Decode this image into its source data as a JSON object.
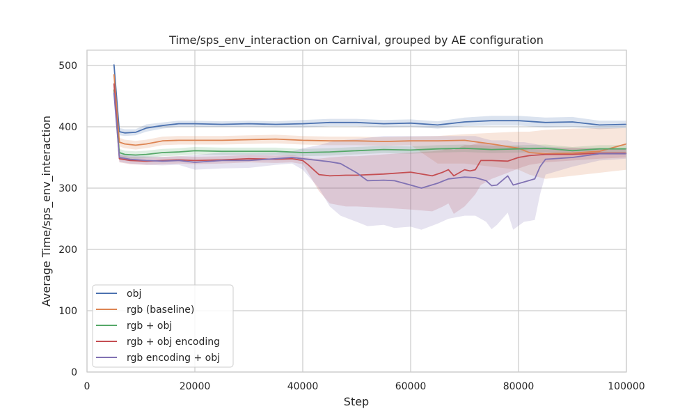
{
  "chart_data": {
    "type": "line",
    "title": "Time/sps_env_interaction on Carnival, grouped by AE configuration",
    "xlabel": "Step",
    "ylabel": "Average Time/sps_env_interaction",
    "xlim": [
      0,
      100000
    ],
    "ylim": [
      0,
      525
    ],
    "xticks": [
      0,
      20000,
      40000,
      60000,
      80000,
      100000
    ],
    "xtick_labels": [
      "0",
      "20000",
      "40000",
      "60000",
      "80000",
      "100000"
    ],
    "yticks": [
      0,
      100,
      200,
      300,
      400,
      500
    ],
    "ytick_labels": [
      "0",
      "100",
      "200",
      "300",
      "400",
      "500"
    ],
    "grid": true,
    "legend_position": "lower-left",
    "series": [
      {
        "name": "obj",
        "color": "#4c72b0",
        "x": [
          5000,
          6000,
          7000,
          9000,
          11000,
          14000,
          17000,
          20000,
          25000,
          30000,
          35000,
          40000,
          45000,
          50000,
          55000,
          60000,
          65000,
          70000,
          75000,
          80000,
          85000,
          90000,
          95000,
          100000
        ],
        "values": [
          501,
          392,
          390,
          391,
          398,
          402,
          405,
          405,
          404,
          405,
          404,
          405,
          407,
          407,
          405,
          406,
          403,
          408,
          410,
          410,
          407,
          408,
          403,
          404
        ],
        "lower": [
          490,
          386,
          385,
          386,
          392,
          397,
          400,
          400,
          400,
          400,
          399,
          399,
          401,
          401,
          399,
          400,
          397,
          401,
          402,
          402,
          399,
          400,
          396,
          398
        ],
        "upper": [
          510,
          398,
          396,
          396,
          404,
          407,
          410,
          410,
          409,
          410,
          409,
          411,
          413,
          413,
          411,
          412,
          409,
          415,
          418,
          418,
          415,
          416,
          410,
          410
        ]
      },
      {
        "name": "rgb (baseline)",
        "color": "#dd8452",
        "x": [
          5000,
          6000,
          7000,
          9000,
          11000,
          14000,
          17000,
          20000,
          25000,
          30000,
          35000,
          40000,
          45000,
          50000,
          55000,
          60000,
          65000,
          70000,
          75000,
          80000,
          82000,
          85000,
          90000,
          95000,
          100000
        ],
        "values": [
          485,
          375,
          372,
          370,
          372,
          377,
          378,
          378,
          378,
          379,
          380,
          378,
          377,
          377,
          376,
          377,
          377,
          378,
          372,
          365,
          358,
          356,
          357,
          360,
          372
        ],
        "lower": [
          470,
          368,
          365,
          363,
          365,
          370,
          371,
          371,
          371,
          372,
          373,
          371,
          370,
          370,
          369,
          370,
          340,
          340,
          335,
          330,
          322,
          315,
          320,
          325,
          330
        ],
        "upper": [
          500,
          382,
          379,
          377,
          379,
          384,
          385,
          385,
          385,
          386,
          387,
          385,
          384,
          384,
          383,
          384,
          385,
          388,
          390,
          392,
          392,
          395,
          397,
          398,
          398
        ]
      },
      {
        "name": "rgb + obj",
        "color": "#55a868",
        "x": [
          5000,
          6000,
          7000,
          9000,
          11000,
          14000,
          17000,
          20000,
          25000,
          30000,
          35000,
          40000,
          45000,
          50000,
          55000,
          60000,
          65000,
          70000,
          75000,
          80000,
          85000,
          90000,
          95000,
          100000
        ],
        "values": [
          460,
          358,
          355,
          354,
          355,
          358,
          359,
          361,
          360,
          360,
          360,
          358,
          359,
          361,
          363,
          362,
          364,
          365,
          363,
          364,
          365,
          361,
          364,
          364
        ],
        "lower": [
          445,
          352,
          349,
          348,
          349,
          352,
          353,
          355,
          354,
          354,
          354,
          352,
          353,
          355,
          357,
          356,
          358,
          359,
          357,
          358,
          359,
          355,
          358,
          358
        ],
        "upper": [
          475,
          364,
          361,
          360,
          361,
          364,
          365,
          367,
          366,
          366,
          366,
          364,
          365,
          367,
          369,
          368,
          370,
          371,
          369,
          370,
          371,
          367,
          370,
          370
        ]
      },
      {
        "name": "rgb + obj encoding",
        "color": "#c44e52",
        "x": [
          5000,
          6000,
          8000,
          11000,
          14000,
          17000,
          20000,
          25000,
          30000,
          35000,
          38000,
          40000,
          41000,
          42000,
          43000,
          45000,
          48000,
          50000,
          55000,
          60000,
          64000,
          66000,
          67000,
          68000,
          70000,
          71000,
          72000,
          73000,
          75000,
          78000,
          80000,
          82000,
          85000,
          90000,
          95000,
          100000
        ],
        "values": [
          470,
          348,
          345,
          344,
          345,
          346,
          345,
          346,
          348,
          347,
          348,
          345,
          338,
          330,
          322,
          320,
          321,
          321,
          323,
          326,
          320,
          326,
          330,
          320,
          330,
          328,
          330,
          345,
          345,
          344,
          350,
          353,
          355,
          355,
          357,
          357
        ],
        "lower": [
          455,
          342,
          339,
          338,
          339,
          340,
          339,
          340,
          342,
          341,
          342,
          339,
          325,
          310,
          295,
          275,
          270,
          270,
          268,
          265,
          262,
          270,
          275,
          258,
          270,
          280,
          290,
          305,
          315,
          325,
          332,
          338,
          342,
          345,
          348,
          350
        ],
        "upper": [
          485,
          354,
          351,
          350,
          351,
          352,
          351,
          352,
          354,
          353,
          354,
          351,
          350,
          348,
          348,
          350,
          352,
          352,
          355,
          358,
          360,
          362,
          365,
          362,
          370,
          370,
          372,
          375,
          372,
          368,
          368,
          366,
          366,
          366,
          365,
          364
        ]
      },
      {
        "name": "rgb encoding + obj",
        "color": "#8172b3",
        "x": [
          5000,
          6000,
          8000,
          11000,
          14000,
          17000,
          20000,
          25000,
          30000,
          35000,
          38000,
          40000,
          43000,
          45000,
          47000,
          50000,
          52000,
          55000,
          57000,
          60000,
          62000,
          65000,
          67000,
          70000,
          72000,
          74000,
          75000,
          76000,
          78000,
          79000,
          81000,
          83000,
          84000,
          85000,
          90000,
          95000,
          100000
        ],
        "values": [
          455,
          350,
          347,
          345,
          344,
          345,
          342,
          345,
          345,
          348,
          350,
          348,
          345,
          343,
          340,
          325,
          312,
          313,
          312,
          305,
          300,
          308,
          315,
          318,
          317,
          312,
          304,
          305,
          320,
          305,
          310,
          315,
          335,
          347,
          350,
          356,
          356
        ],
        "lower": [
          440,
          343,
          340,
          338,
          337,
          338,
          330,
          332,
          333,
          338,
          340,
          330,
          300,
          270,
          255,
          245,
          238,
          240,
          235,
          237,
          232,
          242,
          250,
          255,
          255,
          245,
          233,
          240,
          260,
          232,
          245,
          248,
          290,
          322,
          335,
          345,
          348
        ],
        "upper": [
          470,
          357,
          354,
          352,
          351,
          352,
          354,
          358,
          357,
          358,
          360,
          365,
          370,
          375,
          378,
          380,
          382,
          385,
          385,
          385,
          385,
          385,
          385,
          385,
          385,
          380,
          378,
          378,
          378,
          375,
          375,
          372,
          370,
          368,
          365,
          365,
          364
        ]
      }
    ]
  }
}
